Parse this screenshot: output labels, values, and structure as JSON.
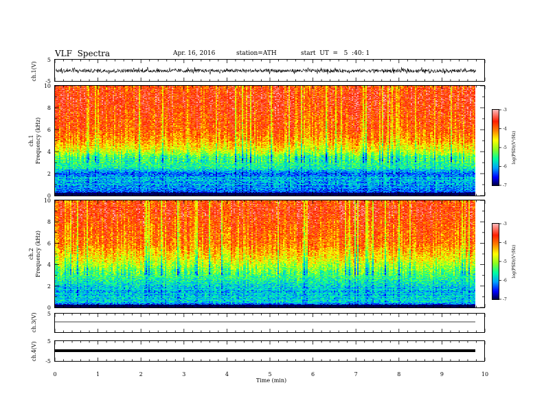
{
  "header": {
    "title": "VLF  Spectra",
    "date": "Apr. 16, 2016",
    "station": "station=ATH",
    "start": "start  UT  =   5  :40: 1"
  },
  "colors": {
    "spectrum": [
      "#000050",
      "#0000ff",
      "#00a0ff",
      "#00ffa0",
      "#90ff20",
      "#ffff00",
      "#ff8000",
      "#ff2000",
      "#ffb0b0"
    ]
  },
  "chart_data": [
    {
      "type": "line",
      "panel": "ch1-waveform",
      "ylabel": "ch.1(V)",
      "ylim": [
        -5,
        5
      ],
      "yticks": [
        "5",
        "-5"
      ],
      "xlim": [
        0,
        10
      ],
      "description_values": {
        "mean": -0.2,
        "amplitude": 0.8
      }
    },
    {
      "type": "heatmap",
      "panel": "ch1-spectrogram",
      "ylabel_line1": "ch.1",
      "ylabel_line2": "Frequency  (kHz)",
      "ylim": [
        0,
        10
      ],
      "yticks": [
        "0",
        "2",
        "4",
        "6",
        "8",
        "10"
      ],
      "xlim": [
        0,
        9.8
      ],
      "colorbar": {
        "label": "log(PSD)(V²/Hz)",
        "range": [
          -7,
          -3
        ],
        "ticks": [
          "-3",
          "-4",
          "-5",
          "-6",
          "-7"
        ]
      },
      "profile_khz_logpsd": [
        [
          0,
          -7
        ],
        [
          0.5,
          -6.2
        ],
        [
          1.5,
          -6.0
        ],
        [
          2,
          -6.3
        ],
        [
          2.5,
          -5.6
        ],
        [
          3.5,
          -5.4
        ],
        [
          4,
          -4.8
        ],
        [
          5,
          -4.2
        ],
        [
          6,
          -3.9
        ],
        [
          8,
          -3.7
        ],
        [
          9,
          -3.6
        ],
        [
          10,
          -3.8
        ]
      ]
    },
    {
      "type": "heatmap",
      "panel": "ch2-spectrogram",
      "ylabel_line1": "ch.2",
      "ylabel_line2": "Frequency  (kHz)",
      "ylim": [
        0,
        10
      ],
      "yticks": [
        "0",
        "2",
        "4",
        "6",
        "8",
        "10"
      ],
      "xlim": [
        0,
        9.8
      ],
      "colorbar": {
        "label": "log(PSD)(V²/Hz)",
        "range": [
          -7,
          -3
        ],
        "ticks": [
          "-3",
          "-4",
          "-5",
          "-6",
          "-7"
        ]
      },
      "profile_khz_logpsd": [
        [
          0,
          -7
        ],
        [
          0.5,
          -5.8
        ],
        [
          1.5,
          -6.0
        ],
        [
          2.5,
          -5.6
        ],
        [
          3.5,
          -5.2
        ],
        [
          4.5,
          -4.6
        ],
        [
          6,
          -4.0
        ],
        [
          8,
          -3.8
        ],
        [
          9,
          -3.6
        ],
        [
          10,
          -3.8
        ]
      ]
    },
    {
      "type": "line",
      "panel": "ch3-waveform",
      "ylabel": "ch.3(V)",
      "ylim": [
        -5,
        5
      ],
      "yticks": [
        "5"
      ],
      "xlim": [
        0,
        9.8
      ],
      "description_values": {
        "mean": 0.0,
        "amplitude": 0.0
      }
    },
    {
      "type": "line",
      "panel": "ch4-waveform",
      "ylabel": "ch.4(V)",
      "ylim": [
        -5,
        5
      ],
      "yticks": [
        "5",
        "-5"
      ],
      "xlim": [
        0,
        9.8
      ],
      "description_values": {
        "mean": 0.0,
        "amplitude": 0.1
      }
    }
  ],
  "xaxis": {
    "label": "Time  (min)",
    "ticks": [
      "0",
      "1",
      "2",
      "3",
      "4",
      "5",
      "6",
      "7",
      "8",
      "9",
      "10"
    ],
    "range": [
      0,
      10
    ]
  }
}
